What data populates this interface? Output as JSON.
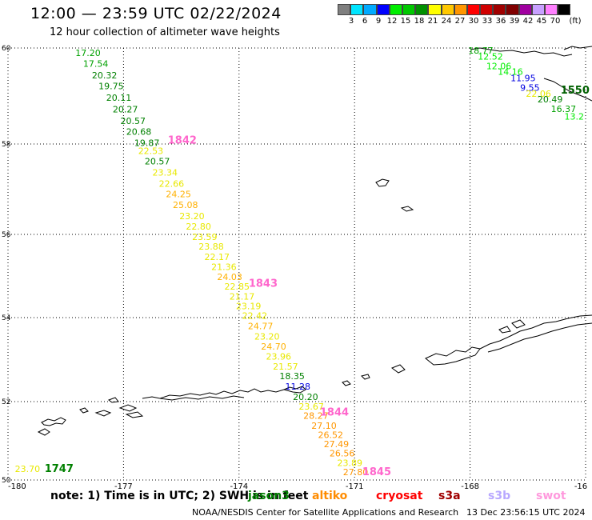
{
  "header": {
    "title": "12:00 — 23:59 UTC 02/22/2024",
    "subtitle": "12 hour collection of altimeter wave heights"
  },
  "legend": {
    "colors": [
      "#7f7f7f",
      "#00e5ff",
      "#00aaff",
      "#0000ff",
      "#00ee00",
      "#00c800",
      "#009000",
      "#ffff00",
      "#ffc800",
      "#ff9600",
      "#ff0000",
      "#d00000",
      "#a00000",
      "#800000",
      "#a000a0",
      "#c8a0ff",
      "#ff80ff",
      "#000000"
    ],
    "labels": [
      "3",
      "6",
      "9",
      "12",
      "15",
      "18",
      "21",
      "24",
      "27",
      "30",
      "33",
      "36",
      "39",
      "42",
      "45",
      "70",
      "(ft)"
    ]
  },
  "map": {
    "lon_ticks": [
      "-180",
      "-177",
      "-174",
      "-171",
      "-168",
      "-16"
    ],
    "lat_ticks": [
      "60",
      "58",
      "56",
      "54",
      "52",
      "50"
    ]
  },
  "track_labels": [
    {
      "text": "17.20",
      "lon": -178.25,
      "lat": 59.83,
      "color": "#00a000"
    },
    {
      "text": "17.54",
      "lon": -178.05,
      "lat": 59.61,
      "color": "#00a000"
    },
    {
      "text": "20.32",
      "lon": -177.82,
      "lat": 59.37,
      "color": "#008000"
    },
    {
      "text": "19.75",
      "lon": -177.65,
      "lat": 59.14,
      "color": "#008000"
    },
    {
      "text": "20.11",
      "lon": -177.45,
      "lat": 58.9,
      "color": "#008000"
    },
    {
      "text": "20.27",
      "lon": -177.28,
      "lat": 58.66,
      "color": "#008000"
    },
    {
      "text": "20.57",
      "lon": -177.08,
      "lat": 58.42,
      "color": "#008000"
    },
    {
      "text": "20.68",
      "lon": -176.93,
      "lat": 58.19,
      "color": "#008000"
    },
    {
      "text": "19.87",
      "lon": -176.72,
      "lat": 57.96,
      "color": "#008000"
    },
    {
      "text": "22.53",
      "lon": -176.62,
      "lat": 57.78,
      "color": "#e8e800"
    },
    {
      "text": "20.57",
      "lon": -176.45,
      "lat": 57.55,
      "color": "#008000"
    },
    {
      "text": "23.34",
      "lon": -176.25,
      "lat": 57.3,
      "color": "#e8e800"
    },
    {
      "text": "22.66",
      "lon": -176.08,
      "lat": 57.05,
      "color": "#e8e800"
    },
    {
      "text": "24.25",
      "lon": -175.9,
      "lat": 56.82,
      "color": "#ffb000"
    },
    {
      "text": "25.08",
      "lon": -175.72,
      "lat": 56.58,
      "color": "#ffb000"
    },
    {
      "text": "23.20",
      "lon": -175.55,
      "lat": 56.34,
      "color": "#e8e800"
    },
    {
      "text": "22.80",
      "lon": -175.38,
      "lat": 56.11,
      "color": "#e8e800"
    },
    {
      "text": "23.59",
      "lon": -175.22,
      "lat": 55.87,
      "color": "#e8e800"
    },
    {
      "text": "23.88",
      "lon": -175.05,
      "lat": 55.63,
      "color": "#e8e800"
    },
    {
      "text": "22.17",
      "lon": -174.9,
      "lat": 55.38,
      "color": "#e8e800"
    },
    {
      "text": "21.36",
      "lon": -174.72,
      "lat": 55.14,
      "color": "#e8e800"
    },
    {
      "text": "24.03",
      "lon": -174.57,
      "lat": 54.9,
      "color": "#ffb000"
    },
    {
      "text": "22.85",
      "lon": -174.38,
      "lat": 54.67,
      "color": "#e8e800"
    },
    {
      "text": "21.17",
      "lon": -174.25,
      "lat": 54.43,
      "color": "#e8e800"
    },
    {
      "text": "23.19",
      "lon": -174.08,
      "lat": 54.2,
      "color": "#e8e800"
    },
    {
      "text": "22.42",
      "lon": -173.92,
      "lat": 53.97,
      "color": "#e8e800"
    },
    {
      "text": "24.77",
      "lon": -173.77,
      "lat": 53.72,
      "color": "#ffb000"
    },
    {
      "text": "23.20",
      "lon": -173.6,
      "lat": 53.48,
      "color": "#e8e800"
    },
    {
      "text": "24.70",
      "lon": -173.43,
      "lat": 53.24,
      "color": "#ffb000"
    },
    {
      "text": "23.96",
      "lon": -173.3,
      "lat": 53.0,
      "color": "#e8e800"
    },
    {
      "text": "21.57",
      "lon": -173.12,
      "lat": 52.76,
      "color": "#e8e800"
    },
    {
      "text": "18.35",
      "lon": -172.95,
      "lat": 52.53,
      "color": "#008000"
    },
    {
      "text": "11.28",
      "lon": -172.8,
      "lat": 52.29,
      "color": "#0000e0"
    },
    {
      "text": "20.20",
      "lon": -172.6,
      "lat": 52.04,
      "color": "#008000"
    },
    {
      "text": "23.67",
      "lon": -172.45,
      "lat": 51.8,
      "color": "#e8e800"
    },
    {
      "text": "28.27",
      "lon": -172.33,
      "lat": 51.56,
      "color": "#ff9600"
    },
    {
      "text": "27.10",
      "lon": -172.12,
      "lat": 51.31,
      "color": "#ff9600"
    },
    {
      "text": "26.52",
      "lon": -171.95,
      "lat": 51.07,
      "color": "#ff9600"
    },
    {
      "text": "27.49",
      "lon": -171.8,
      "lat": 50.84,
      "color": "#ff9600"
    },
    {
      "text": "26.56",
      "lon": -171.65,
      "lat": 50.6,
      "color": "#ff9600"
    },
    {
      "text": "23.89",
      "lon": -171.45,
      "lat": 50.36,
      "color": "#e8e800"
    },
    {
      "text": "27.80",
      "lon": -171.3,
      "lat": 50.12,
      "color": "#ff9600"
    },
    {
      "text": "23.70",
      "lon": -179.82,
      "lat": 50.2,
      "color": "#e8e800"
    },
    {
      "text": "18.77",
      "lon": -168.05,
      "lat": 59.88,
      "color": "#00a000"
    },
    {
      "text": "12.52",
      "lon": -167.8,
      "lat": 59.76,
      "color": "#00ee00"
    },
    {
      "text": "12.06",
      "lon": -167.58,
      "lat": 59.56,
      "color": "#00ee00"
    },
    {
      "text": "14.16",
      "lon": -167.28,
      "lat": 59.44,
      "color": "#00ee00"
    },
    {
      "text": "11.95",
      "lon": -166.95,
      "lat": 59.31,
      "color": "#0000e0"
    },
    {
      "text": "9.55",
      "lon": -166.7,
      "lat": 59.11,
      "color": "#0000e0"
    },
    {
      "text": "22.06",
      "lon": -166.55,
      "lat": 58.98,
      "color": "#e8e800"
    },
    {
      "text": "20.49",
      "lon": -166.25,
      "lat": 58.87,
      "color": "#008000"
    },
    {
      "text": "16.37",
      "lon": -165.9,
      "lat": 58.67,
      "color": "#00a000"
    },
    {
      "text": "13.2",
      "lon": -165.55,
      "lat": 58.51,
      "color": "#00ee00"
    }
  ],
  "time_labels": [
    {
      "text": "1842",
      "lon": -175.85,
      "lat": 58.01,
      "color": "#ff66cc"
    },
    {
      "text": "1843",
      "lon": -173.75,
      "lat": 54.74,
      "color": "#ff66cc"
    },
    {
      "text": "1844",
      "lon": -171.9,
      "lat": 51.64,
      "color": "#ff66cc"
    },
    {
      "text": "1845",
      "lon": -170.8,
      "lat": 50.12,
      "color": "#ff66cc"
    },
    {
      "text": "1747",
      "lon": -179.05,
      "lat": 50.2,
      "color": "#008000"
    },
    {
      "text": "1550",
      "lon": -165.65,
      "lat": 59.05,
      "color": "#006000"
    }
  ],
  "footer": {
    "note": "note:  1) Time is in UTC; 2) SWH is in feet",
    "missions": [
      {
        "name": "jason3",
        "color": "#008000"
      },
      {
        "name": "altiko",
        "color": "#ff8c00"
      },
      {
        "name": "cryosat",
        "color": "#ff0000"
      },
      {
        "name": "s3a",
        "color": "#a00000"
      },
      {
        "name": "s3b",
        "color": "#b8a8ff"
      },
      {
        "name": "swot",
        "color": "#ff99dd"
      }
    ],
    "credit": "NOAA/NESDIS Center for Satellite Applications and Research",
    "timestamp": "13 Dec 23:56:15 UTC 2024"
  }
}
